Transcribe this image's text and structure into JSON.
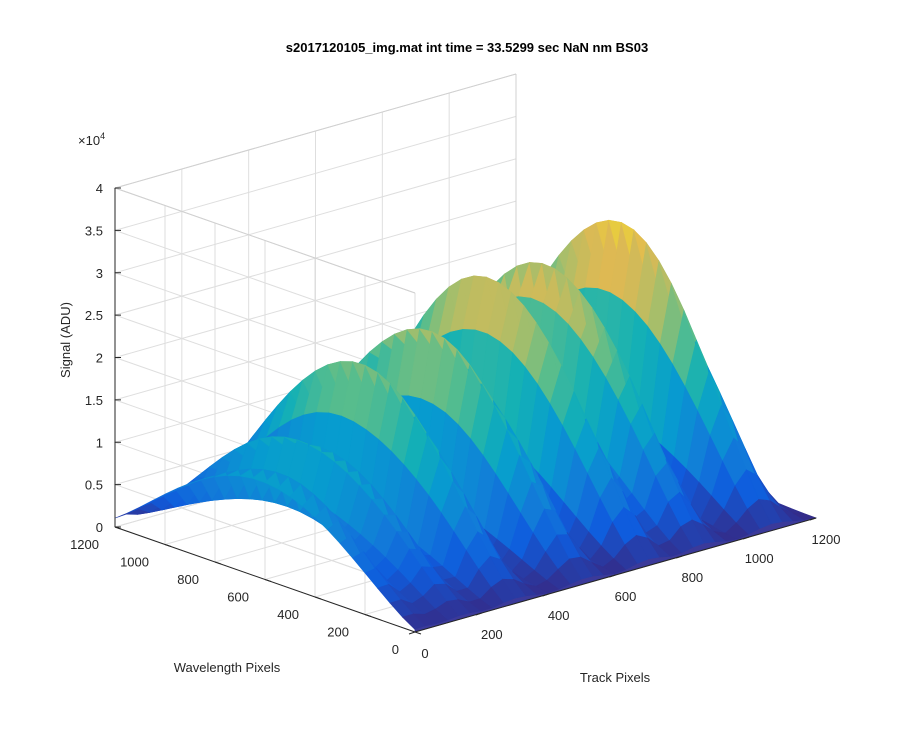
{
  "chart_data": {
    "type": "surface",
    "title": "s2017120105_img.mat int time = 33.5299 sec  NaN nm BS03",
    "xlabel": "Track Pixels",
    "ylabel": "Wavelength Pixels",
    "zlabel": "Signal (ADU)",
    "z_exponent_label": "×10",
    "z_exponent_power": "4",
    "xlim": [
      0,
      1200
    ],
    "ylim": [
      0,
      1200
    ],
    "zlim": [
      0,
      4
    ],
    "x_ticks": [
      0,
      200,
      400,
      600,
      800,
      1000,
      1200
    ],
    "y_ticks": [
      0,
      200,
      400,
      600,
      800,
      1000,
      1200
    ],
    "z_ticks": [
      0,
      0.5,
      1,
      1.5,
      2,
      2.5,
      3,
      3.5,
      4
    ],
    "x_tick_labels": [
      "0",
      "200",
      "400",
      "600",
      "800",
      "1000",
      "1200"
    ],
    "y_tick_labels": [
      "0",
      "200",
      "400",
      "600",
      "800",
      "1000",
      "1200"
    ],
    "z_tick_labels": [
      "0",
      "0.5",
      "1",
      "1.5",
      "2",
      "2.5",
      "3",
      "3.5",
      "4"
    ],
    "z_scale": 10000,
    "grid": true,
    "colormap": "parula",
    "series": [
      {
        "track_pixel": 20,
        "peak_signal": 1.25
      },
      {
        "track_pixel": 145,
        "peak_signal": 1.5
      },
      {
        "track_pixel": 305,
        "peak_signal": 2.2
      },
      {
        "track_pixel": 510,
        "peak_signal": 2.4
      },
      {
        "track_pixel": 700,
        "peak_signal": 2.75
      },
      {
        "track_pixel": 860,
        "peak_signal": 2.75
      },
      {
        "track_pixel": 1070,
        "peak_signal": 3.0
      }
    ]
  }
}
